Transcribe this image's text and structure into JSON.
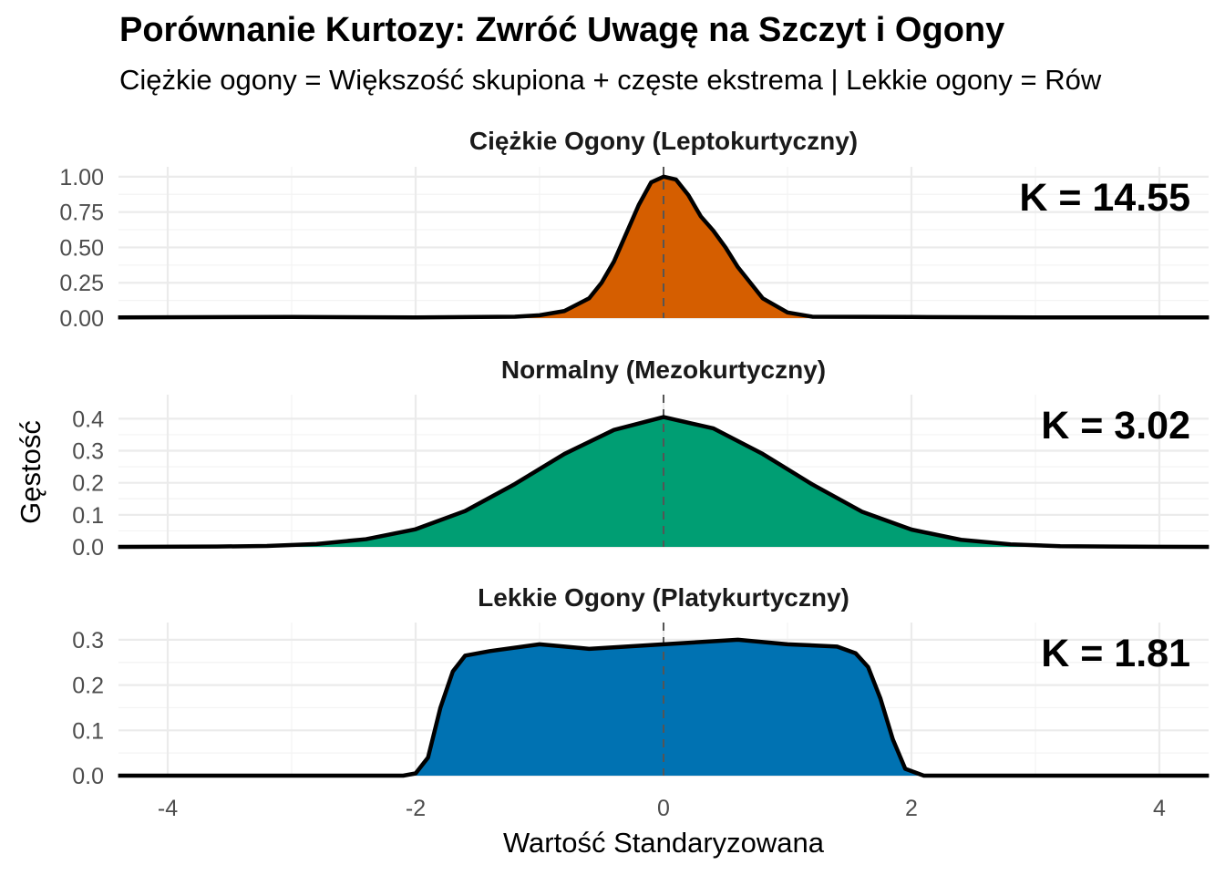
{
  "chart_data": {
    "type": "area",
    "title": "Porównanie Kurtozy: Zwróć Uwagę na Szczyt i Ogony",
    "subtitle": "Ciężkie ogony = Większość skupiona + częste ekstrema  |  Lekkie ogony = Rów",
    "xlabel": "Wartość Standaryzowana",
    "ylabel": "Gęstość",
    "xlim": [
      -4.4,
      4.4
    ],
    "x_ticks": [
      -4,
      -2,
      0,
      2,
      4
    ],
    "x_tick_labels": [
      "-4",
      "-2",
      "0",
      "2",
      "4"
    ],
    "reference_line_x": 0,
    "panels": [
      {
        "name": "Ciężkie Ogony (Leptokurtyczny)",
        "annotation": "K = 14.55",
        "color": "#D55E00",
        "ylim": [
          0,
          1.07
        ],
        "y_ticks": [
          0,
          0.25,
          0.5,
          0.75,
          1.0
        ],
        "y_tick_labels": [
          "0.00",
          "0.25",
          "0.50",
          "0.75",
          "1.00"
        ],
        "x": [
          -4.4,
          -3,
          -2,
          -1.2,
          -1.0,
          -0.8,
          -0.6,
          -0.5,
          -0.4,
          -0.3,
          -0.2,
          -0.1,
          0,
          0.1,
          0.2,
          0.3,
          0.4,
          0.5,
          0.6,
          0.8,
          1.0,
          1.2,
          2,
          3,
          4.4
        ],
        "y": [
          0.005,
          0.008,
          0.005,
          0.01,
          0.02,
          0.05,
          0.14,
          0.25,
          0.4,
          0.6,
          0.8,
          0.96,
          1.0,
          0.98,
          0.87,
          0.72,
          0.62,
          0.5,
          0.36,
          0.14,
          0.04,
          0.01,
          0.008,
          0.005,
          0.005
        ]
      },
      {
        "name": "Normalny (Mezokurtyczny)",
        "annotation": "K = 3.02",
        "color": "#009E73",
        "ylim": [
          0,
          0.475
        ],
        "y_ticks": [
          0,
          0.1,
          0.2,
          0.3,
          0.4
        ],
        "y_tick_labels": [
          "0.0",
          "0.1",
          "0.2",
          "0.3",
          "0.4"
        ],
        "x": [
          -4.4,
          -3.6,
          -3.2,
          -2.8,
          -2.4,
          -2.0,
          -1.6,
          -1.2,
          -0.8,
          -0.4,
          0,
          0.4,
          0.8,
          1.2,
          1.6,
          2.0,
          2.4,
          2.8,
          3.2,
          3.6,
          4.4
        ],
        "y": [
          0,
          0.001,
          0.003,
          0.009,
          0.024,
          0.055,
          0.112,
          0.196,
          0.29,
          0.365,
          0.405,
          0.37,
          0.29,
          0.195,
          0.11,
          0.054,
          0.022,
          0.008,
          0.002,
          0.001,
          0
        ]
      },
      {
        "name": "Lekkie Ogony (Platykurtyczny)",
        "annotation": "K = 1.81",
        "color": "#0072B2",
        "ylim": [
          0,
          0.338
        ],
        "y_ticks": [
          0,
          0.1,
          0.2,
          0.3
        ],
        "y_tick_labels": [
          "0.0",
          "0.1",
          "0.2",
          "0.3"
        ],
        "x": [
          -4.4,
          -2.1,
          -2.0,
          -1.9,
          -1.8,
          -1.7,
          -1.6,
          -1.4,
          -1.0,
          -0.6,
          0,
          0.6,
          1.0,
          1.4,
          1.55,
          1.65,
          1.75,
          1.85,
          1.95,
          2.1,
          4.4
        ],
        "y": [
          0,
          0,
          0.005,
          0.04,
          0.15,
          0.23,
          0.265,
          0.275,
          0.29,
          0.28,
          0.29,
          0.3,
          0.29,
          0.285,
          0.27,
          0.24,
          0.17,
          0.08,
          0.015,
          0,
          0
        ]
      }
    ]
  }
}
